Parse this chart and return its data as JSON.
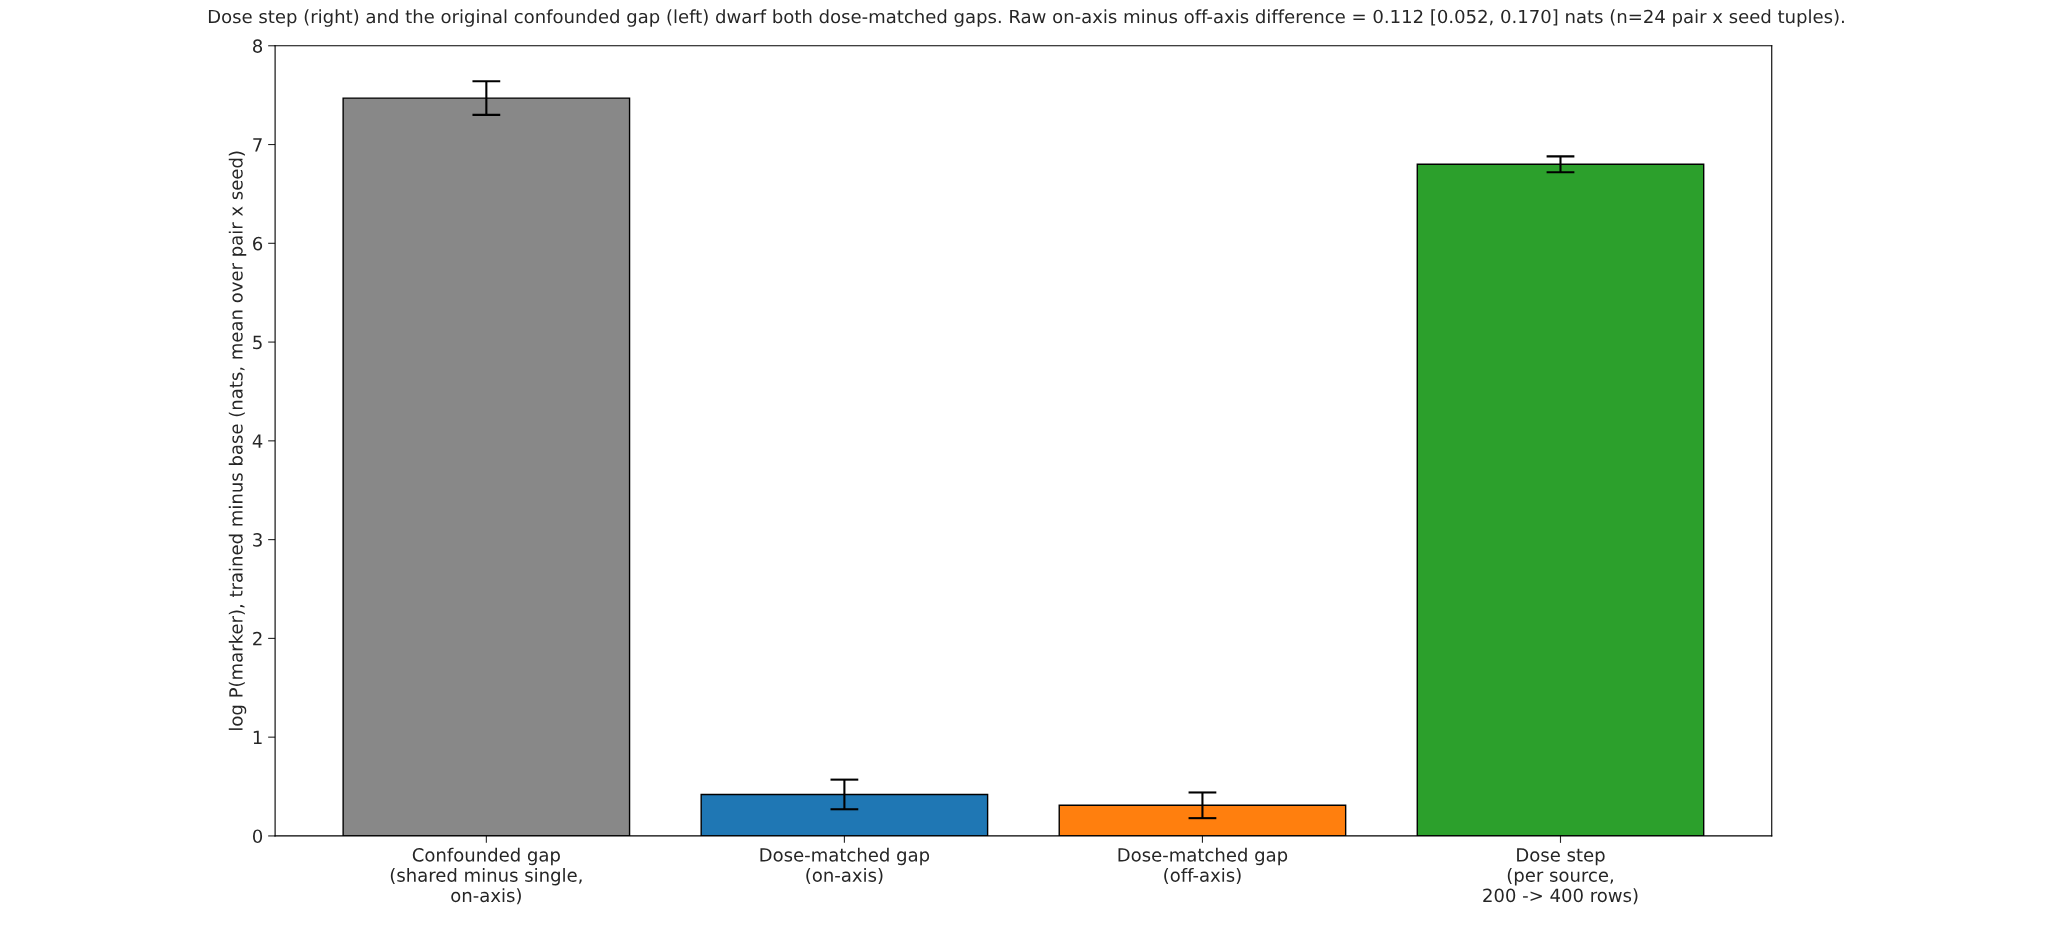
{
  "chart_data": {
    "type": "bar",
    "title": "Dose step (right) and the original confounded gap (left) dwarf both dose-matched gaps. Raw on-axis minus off-axis difference = 0.112 [0.052, 0.170] nats (n=24 pair x seed tuples).",
    "ylabel": "log P(marker), trained minus base (nats, mean over pair x seed)",
    "categories": [
      "Confounded gap\n(shared minus single,\non-axis)",
      "Dose-matched gap\n(on-axis)",
      "Dose-matched gap\n(off-axis)",
      "Dose step\n(per source,\n200 -> 400 rows)"
    ],
    "values": [
      7.47,
      0.42,
      0.31,
      6.8
    ],
    "errors": [
      0.17,
      0.15,
      0.13,
      0.08
    ],
    "colors": [
      "#888888",
      "#1f77b4",
      "#ff7f0e",
      "#2ca02c"
    ],
    "ylim": [
      0,
      8
    ],
    "yticks": [
      0,
      1,
      2,
      3,
      4,
      5,
      6,
      7,
      8
    ],
    "grid": false,
    "legend": false
  }
}
